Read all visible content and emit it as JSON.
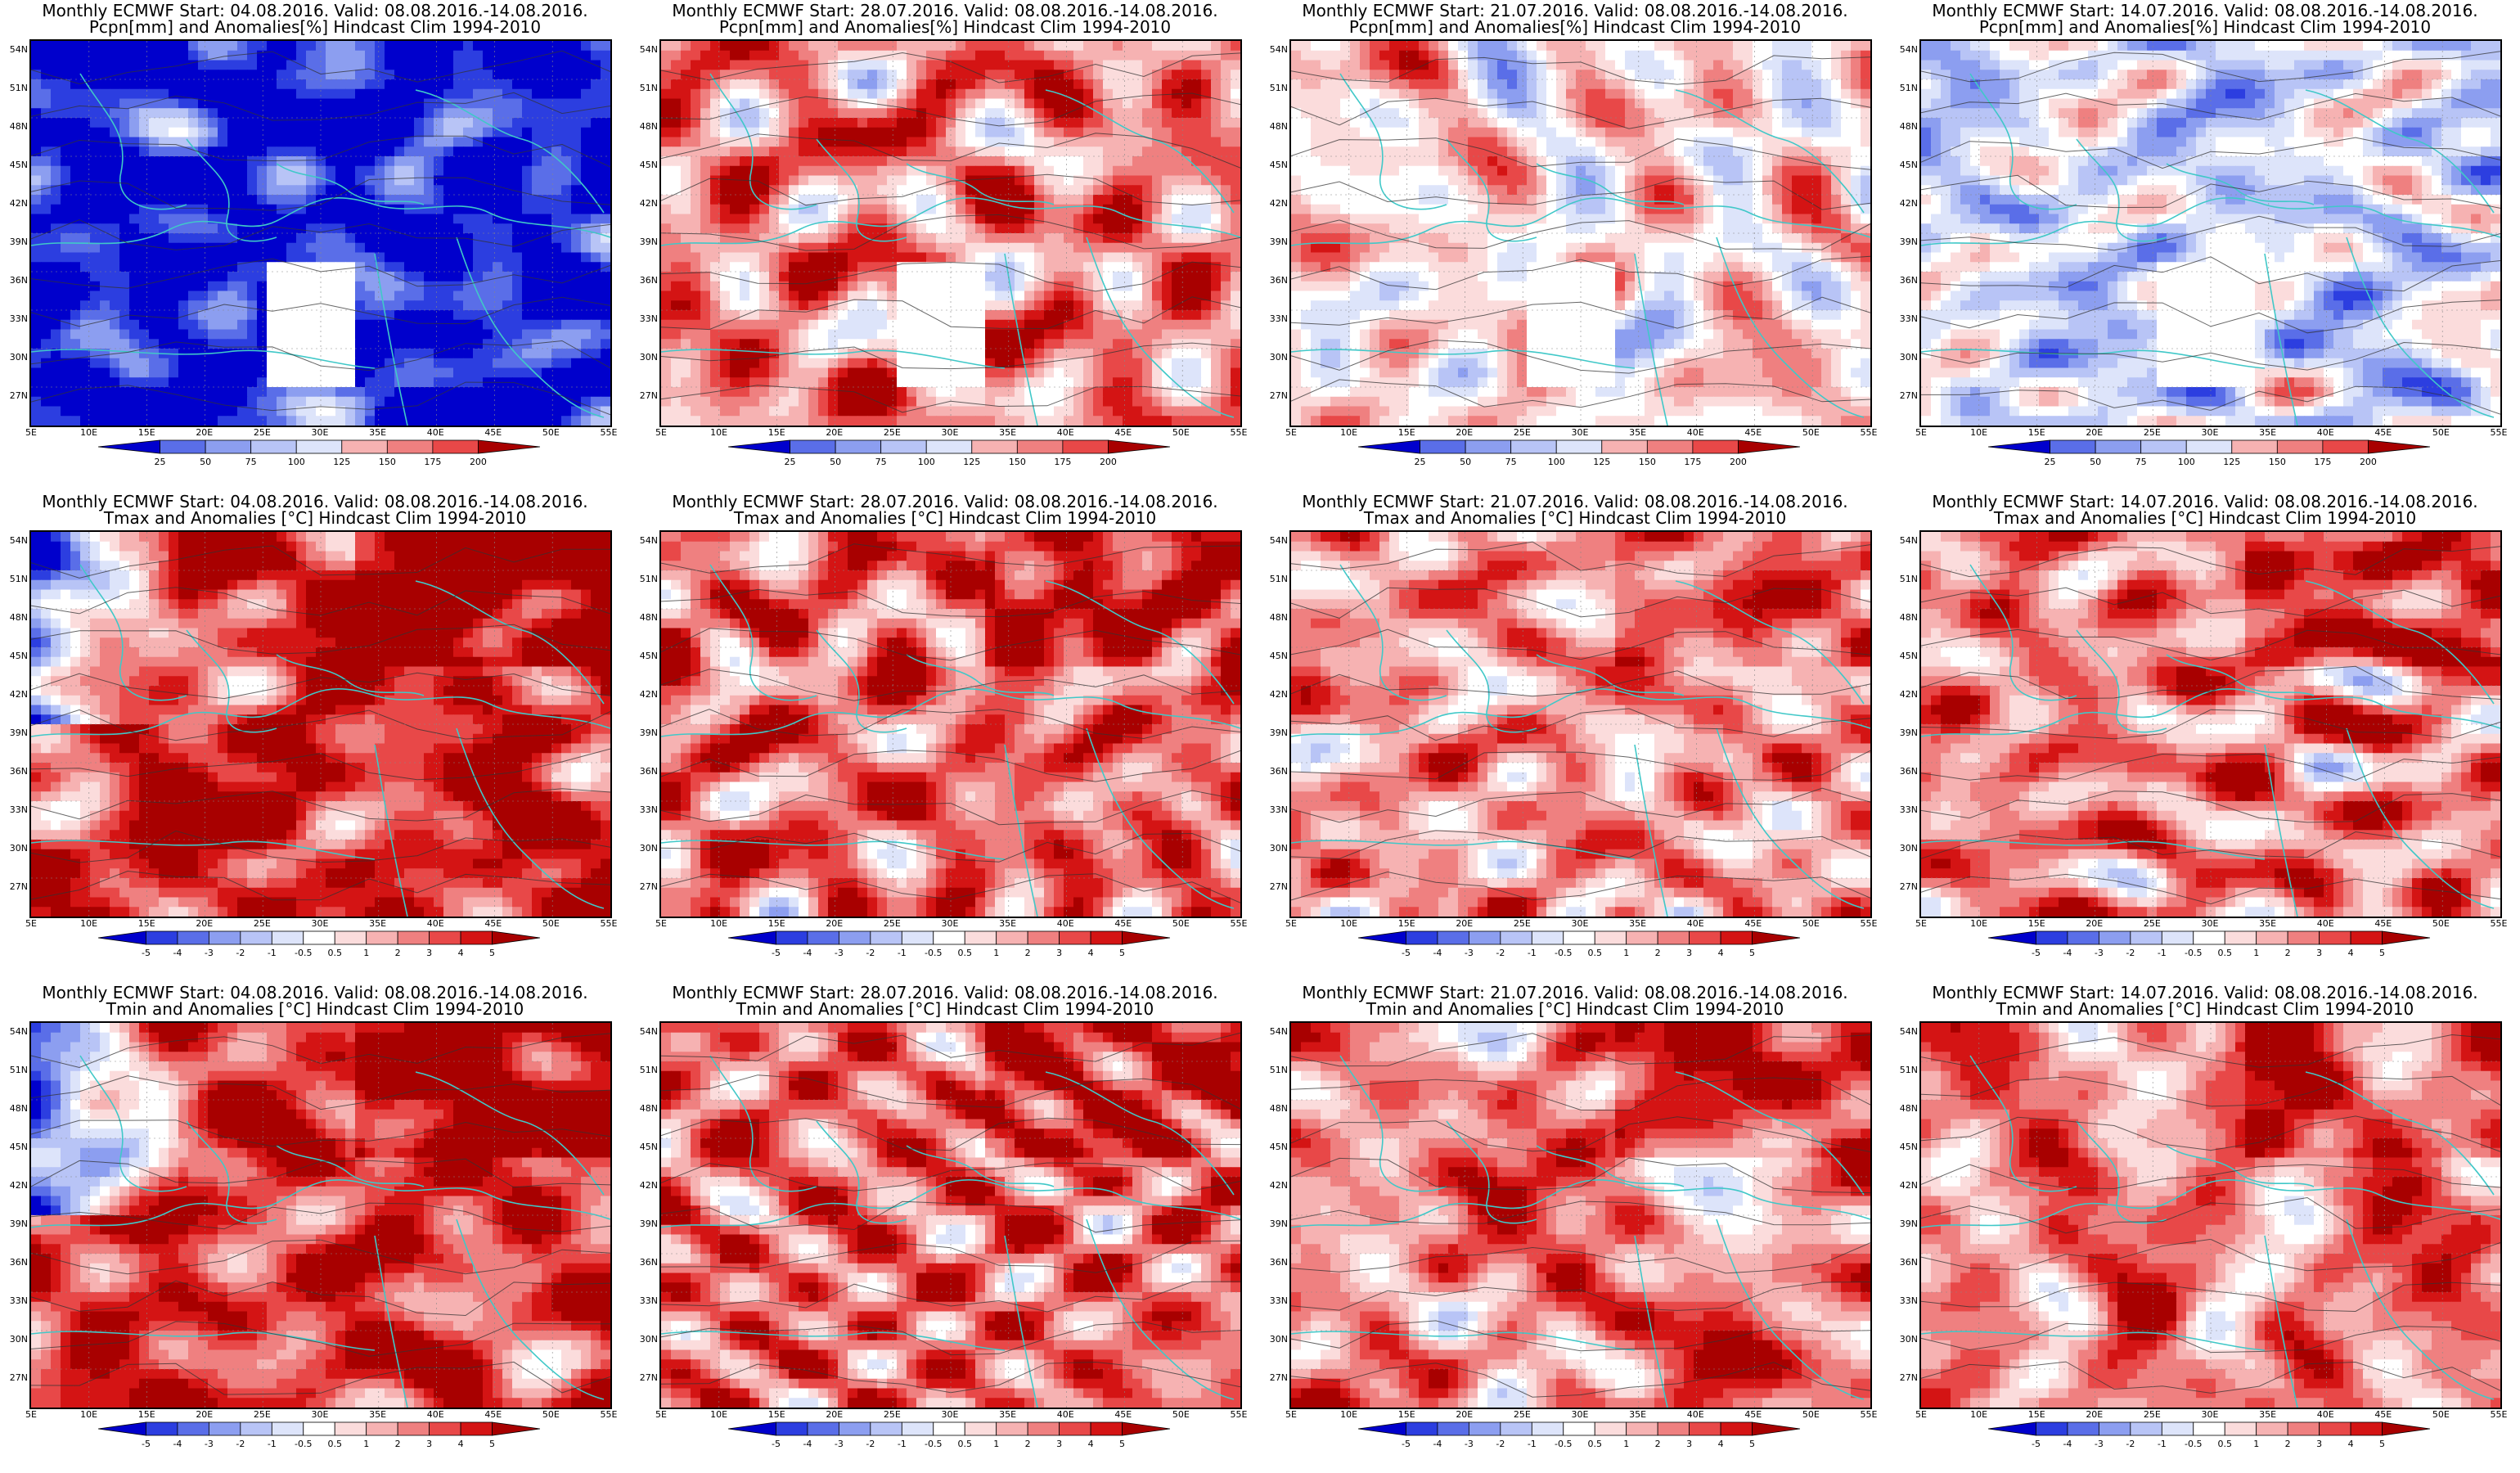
{
  "panels": [
    {
      "title1": "Monthly ECMWF Start: 04.08.2016. Valid: 08.08.2016.-14.08.2016.",
      "title2": "Pcpn[mm] and Anomalies[%] Hindcast Clim 1994-2010",
      "kind": "pcp",
      "anom": -0.6,
      "seed": 11
    },
    {
      "title1": "Monthly ECMWF Start: 28.07.2016. Valid: 08.08.2016.-14.08.2016.",
      "title2": "Pcpn[mm] and Anomalies[%] Hindcast Clim 1994-2010",
      "kind": "pcp",
      "anom": 0.3,
      "seed": 23
    },
    {
      "title1": "Monthly ECMWF Start: 21.07.2016. Valid: 08.08.2016.-14.08.2016.",
      "title2": "Pcpn[mm] and Anomalies[%] Hindcast Clim 1994-2010",
      "kind": "pcp",
      "anom": 0.1,
      "seed": 37
    },
    {
      "title1": "Monthly ECMWF Start: 14.07.2016. Valid: 08.08.2016.-14.08.2016.",
      "title2": "Pcpn[mm] and Anomalies[%] Hindcast Clim 1994-2010",
      "kind": "pcp",
      "anom": -0.1,
      "seed": 41
    },
    {
      "title1": "Monthly ECMWF Start: 04.08.2016. Valid: 08.08.2016.-14.08.2016.",
      "title2": "Tmax and Anomalies [°C] Hindcast Clim 1994-2010",
      "kind": "temp",
      "anom": 0.5,
      "seed": 53
    },
    {
      "title1": "Monthly ECMWF Start: 28.07.2016. Valid: 08.08.2016.-14.08.2016.",
      "title2": "Tmax and Anomalies [°C] Hindcast Clim 1994-2010",
      "kind": "temp",
      "anom": 0.35,
      "seed": 61
    },
    {
      "title1": "Monthly ECMWF Start: 21.07.2016. Valid: 08.08.2016.-14.08.2016.",
      "title2": "Tmax and Anomalies [°C] Hindcast Clim 1994-2010",
      "kind": "temp",
      "anom": 0.25,
      "seed": 73
    },
    {
      "title1": "Monthly ECMWF Start: 14.07.2016. Valid: 08.08.2016.-14.08.2016.",
      "title2": "Tmax and Anomalies [°C] Hindcast Clim 1994-2010",
      "kind": "temp",
      "anom": 0.3,
      "seed": 83
    },
    {
      "title1": "Monthly ECMWF Start: 04.08.2016. Valid: 08.08.2016.-14.08.2016.",
      "title2": "Tmin and Anomalies [°C] Hindcast Clim 1994-2010",
      "kind": "temp",
      "anom": 0.45,
      "seed": 97
    },
    {
      "title1": "Monthly ECMWF Start: 28.07.2016. Valid: 08.08.2016.-14.08.2016.",
      "title2": "Tmin and Anomalies [°C] Hindcast Clim 1994-2010",
      "kind": "temp",
      "anom": 0.35,
      "seed": 103
    },
    {
      "title1": "Monthly ECMWF Start: 21.07.2016. Valid: 08.08.2016.-14.08.2016.",
      "title2": "Tmin and Anomalies [°C] Hindcast Clim 1994-2010",
      "kind": "temp",
      "anom": 0.3,
      "seed": 113
    },
    {
      "title1": "Monthly ECMWF Start: 14.07.2016. Valid: 08.08.2016.-14.08.2016.",
      "title2": "Tmin and Anomalies [°C] Hindcast Clim 1994-2010",
      "kind": "temp",
      "anom": 0.3,
      "seed": 127
    }
  ],
  "lat_labels": [
    "54N",
    "51N",
    "48N",
    "45N",
    "42N",
    "39N",
    "36N",
    "33N",
    "30N",
    "27N"
  ],
  "lon_labels": [
    "5E",
    "10E",
    "15E",
    "20E",
    "25E",
    "30E",
    "35E",
    "40E",
    "45E",
    "50E",
    "55E"
  ],
  "pcp_ticks": [
    "25",
    "50",
    "75",
    "100",
    "125",
    "150",
    "175",
    "200"
  ],
  "temp_ticks": [
    "-5",
    "-4",
    "-3",
    "-2",
    "-1",
    "-0.5",
    "0.5",
    "1",
    "2",
    "3",
    "4",
    "5"
  ],
  "colors": {
    "palette": [
      "#0000cc",
      "#2c3ee0",
      "#5a6ee8",
      "#8c9ef0",
      "#b8c4f6",
      "#dde4fa",
      "#ffffff",
      "#fbdcdc",
      "#f6b2b2",
      "#ef8080",
      "#e84848",
      "#d41414",
      "#a80000"
    ],
    "coast": "#40c8c8",
    "contour": "#333333"
  }
}
